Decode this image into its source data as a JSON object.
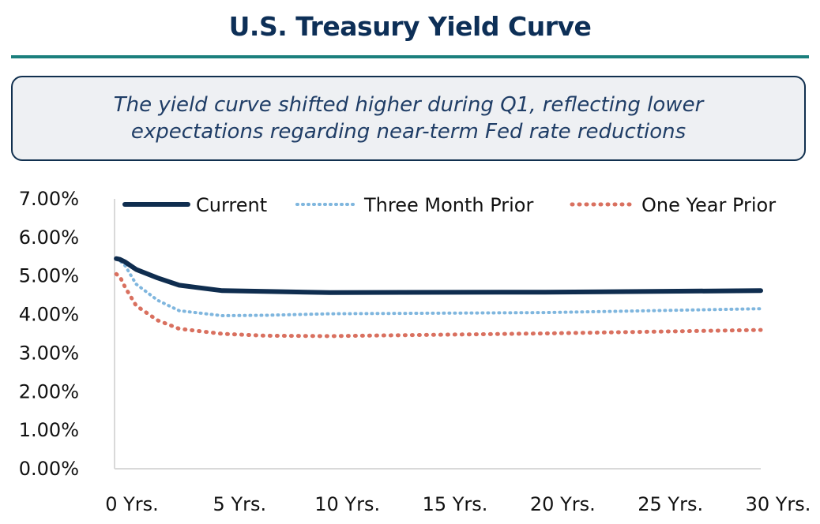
{
  "header": {
    "title": "U.S. Treasury Yield Curve",
    "callout": "The yield curve shifted higher during Q1, reflecting lower expectations regarding near-term Fed rate reductions"
  },
  "colors": {
    "title": "#0d2f57",
    "rule": "#1b7f7d",
    "current": "#0f2d4f",
    "three_month_prior": "#7fb6de",
    "one_year_prior": "#d9705f"
  },
  "chart_data": {
    "type": "line",
    "title": "",
    "xlabel": "",
    "ylabel": "",
    "xlim": [
      0,
      30
    ],
    "ylim": [
      0,
      7
    ],
    "y_ticks": [
      "0.00%",
      "1.00%",
      "2.00%",
      "3.00%",
      "4.00%",
      "5.00%",
      "6.00%",
      "7.00%"
    ],
    "x_ticks": [
      "0 Yrs.",
      "5 Yrs.",
      "10 Yrs.",
      "15 Yrs.",
      "20 Yrs.",
      "25 Yrs.",
      "30 Yrs."
    ],
    "legend_position": "top",
    "grid": false,
    "series": [
      {
        "name": "Current",
        "style": "solid",
        "x": [
          0.08,
          0.25,
          0.5,
          1,
          2,
          3,
          5,
          7,
          10,
          20,
          30
        ],
        "y": [
          5.45,
          5.43,
          5.36,
          5.17,
          4.95,
          4.76,
          4.62,
          4.6,
          4.57,
          4.58,
          4.62
        ]
      },
      {
        "name": "Three Month Prior",
        "style": "dotted",
        "x": [
          0.08,
          0.25,
          0.5,
          1,
          2,
          3,
          5,
          7,
          10,
          20,
          30
        ],
        "y": [
          5.45,
          5.4,
          5.26,
          4.79,
          4.37,
          4.1,
          3.97,
          3.98,
          4.02,
          4.05,
          4.15
        ]
      },
      {
        "name": "One Year Prior",
        "style": "dotted",
        "x": [
          0.08,
          0.25,
          0.5,
          1,
          2,
          3,
          5,
          7,
          10,
          20,
          30
        ],
        "y": [
          5.05,
          4.98,
          4.7,
          4.23,
          3.85,
          3.63,
          3.5,
          3.45,
          3.44,
          3.51,
          3.6
        ]
      }
    ]
  }
}
